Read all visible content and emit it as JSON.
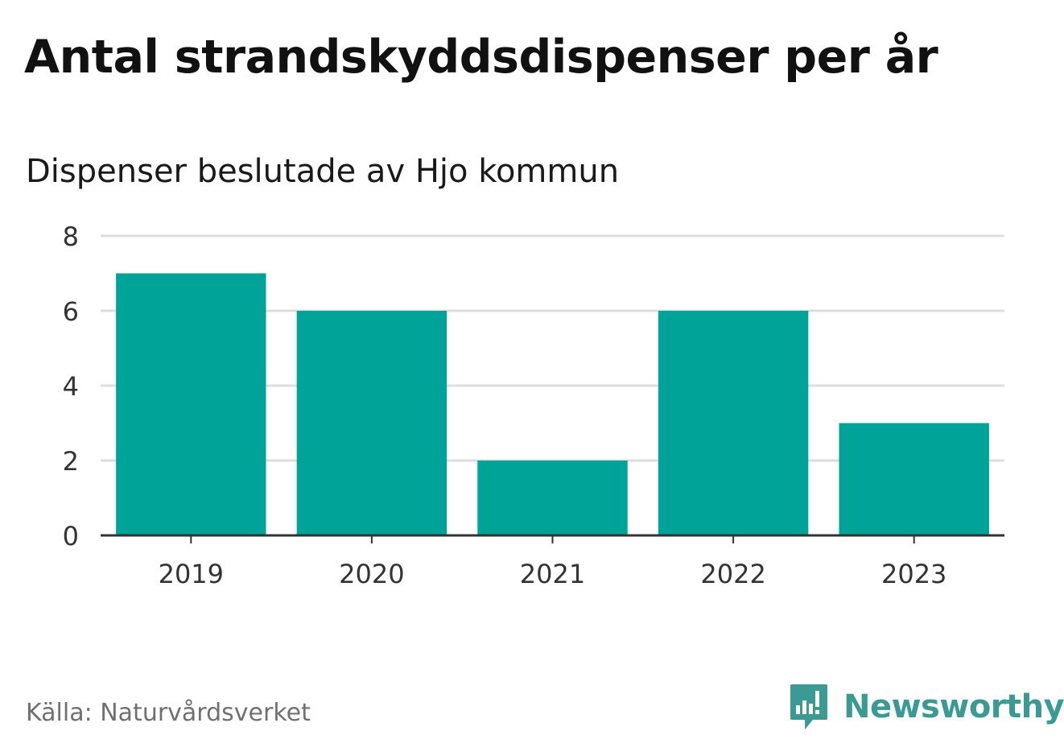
{
  "header": {
    "title": "Antal strandskyddsdispenser per år",
    "subtitle": "Dispenser beslutade av Hjo kommun"
  },
  "footer": {
    "source": "Källa: Naturvårdsverket",
    "brand": "Newsworthy",
    "brand_icon": "newsworthy-chart-bubble-icon"
  },
  "colors": {
    "bar": "#00a398",
    "grid": "#dddddd",
    "axis": "#333333",
    "brand": "#3b9a94"
  },
  "chart_data": {
    "type": "bar",
    "title": "Antal strandskyddsdispenser per år",
    "subtitle": "Dispenser beslutade av Hjo kommun",
    "categories": [
      "2019",
      "2020",
      "2021",
      "2022",
      "2023"
    ],
    "values": [
      7,
      6,
      2,
      6,
      3
    ],
    "yticks": [
      "0",
      "2",
      "4",
      "6",
      "8"
    ],
    "ylim": [
      0,
      8
    ],
    "xlabel": "",
    "ylabel": "",
    "grid": true
  }
}
